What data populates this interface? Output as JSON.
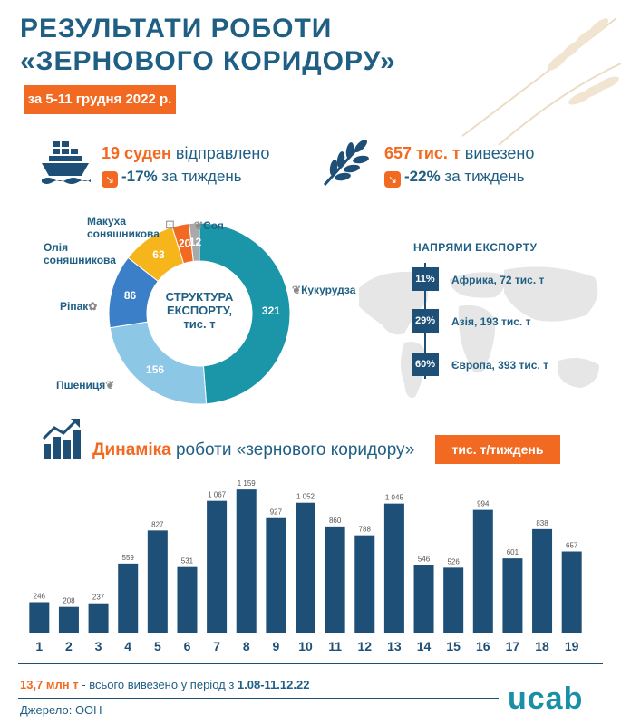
{
  "header": {
    "title_line1": "РЕЗУЛЬТАТИ РОБОТИ",
    "title_line2": "«ЗЕРНОВОГО КОРИДОРУ»",
    "date": "за 5-11 грудня 2022 р."
  },
  "stats": {
    "ships_value": "19 суден",
    "ships_text": "відправлено",
    "ships_change": "-17%",
    "ships_change_text": "за тиждень",
    "tons_value": "657 тис. т",
    "tons_text": "вивезено",
    "tons_change": "-22%",
    "tons_change_text": "за тиждень"
  },
  "structure": {
    "center_line1": "СТРУКТУРА",
    "center_line2": "ЕКСПОРТУ,",
    "center_line3": "тис. т"
  },
  "directions": {
    "title": "НАПРЯМИ ЕКСПОРТУ",
    "items": [
      {
        "pct": "11%",
        "label": "Африка, 72 тис. т"
      },
      {
        "pct": "29%",
        "label": "Азія, 193 тис. т"
      },
      {
        "pct": "60%",
        "label": "Європа, 393 тис. т"
      }
    ]
  },
  "dynamics": {
    "title_bold": "Динаміка",
    "title_rest": "роботи «зернового коридору»",
    "unit": "тис. т/тиждень"
  },
  "footer": {
    "total_bold": "13,7 млн т",
    "total_rest": "- всього вивезено у період з",
    "period": "1.08-11.12.22",
    "source": "Джерело: ООН",
    "logo": "ucab"
  },
  "colors": {
    "orange": "#f26a21",
    "navy": "#1e4f77",
    "teal": "#1b95a8",
    "lightblue": "#8cc8e6",
    "midblue": "#3c7fc9",
    "yellow": "#f7b51c",
    "grey": "#a9a9a9"
  },
  "chart_data": [
    {
      "type": "pie",
      "labels": [
        "Кукурудза",
        "Пшениця",
        "Ріпак",
        "Олія соняшникова",
        "Макуха соняшникова",
        "Соя"
      ],
      "values": [
        321,
        156,
        86,
        63,
        20,
        12
      ],
      "colors": [
        "#1b95a8",
        "#8cc8e6",
        "#3c7fc9",
        "#f7b51c",
        "#f26a21",
        "#a9a9a9"
      ]
    },
    {
      "type": "bar",
      "categories": [
        "1",
        "2",
        "3",
        "4",
        "5",
        "6",
        "7",
        "8",
        "9",
        "10",
        "11",
        "12",
        "13",
        "14",
        "15",
        "16",
        "17",
        "18",
        "19"
      ],
      "values": [
        246,
        208,
        237,
        559,
        827,
        531,
        1067,
        1159,
        927,
        1052,
        860,
        788,
        1045,
        546,
        526,
        994,
        601,
        838,
        657
      ],
      "value_labels": [
        "246",
        "208",
        "237",
        "559",
        "827",
        "531",
        "1 067",
        "1 159",
        "927",
        "1 052",
        "860",
        "788",
        "1 045",
        "546",
        "526",
        "994",
        "601",
        "838",
        "657"
      ],
      "ylim": [
        0,
        1160
      ],
      "color": "#1e4f77"
    }
  ]
}
